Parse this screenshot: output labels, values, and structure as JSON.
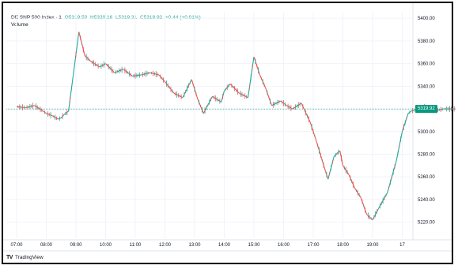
{
  "legend": {
    "symbol": "DE SNP 500 Index · 1",
    "open": "O5319.50",
    "high": "H5320.16",
    "low": "L5319.31",
    "close": "C5319.92",
    "change": "+0.44 (+0.01%)",
    "volume_label": "Volume"
  },
  "price_badge": "5319.92",
  "brand": {
    "logo": "TV",
    "name": "TradingView"
  },
  "colors": {
    "up": "#26a69a",
    "down": "#ef5350",
    "accent": "#089981",
    "grid": "#f0f3fa"
  },
  "chart_data": {
    "type": "line",
    "title": "",
    "xlabel": "",
    "ylabel": "",
    "x_ticks": [
      "07:00",
      "08:00",
      "09:00",
      "10:00",
      "11:00",
      "12:00",
      "13:00",
      "14:00",
      "15:00",
      "16:00",
      "17:00",
      "18:00",
      "19:00",
      "17"
    ],
    "y_ticks": [
      "5400.00",
      "5380.00",
      "5360.00",
      "5340.00",
      "5320.00",
      "5300.00",
      "5280.00",
      "5260.00",
      "5240.00",
      "5220.00"
    ],
    "ylim": [
      5210,
      5405
    ],
    "last_price": 5319.92,
    "series": [
      {
        "x": [
          0,
          0.3,
          0.6,
          0.9,
          1.0,
          1.2,
          1.4,
          1.5,
          1.6,
          1.75,
          1.9,
          2.1,
          2.3,
          2.5,
          2.8,
          3.0,
          3.3,
          3.6,
          3.9,
          4.2,
          4.5,
          4.8,
          5.0,
          5.3,
          5.6,
          5.9,
          6.1,
          6.3,
          6.6,
          6.9,
          7.0,
          7.2,
          7.5,
          7.8,
          8.0,
          8.2,
          8.4,
          8.6,
          8.9,
          9.1,
          9.3,
          9.6,
          9.9,
          10.1,
          10.4,
          10.5,
          10.7,
          10.9,
          11.0,
          11.2,
          11.4,
          11.6,
          11.8,
          12.0,
          12.2,
          12.5,
          12.8,
          13.0,
          13.2,
          13.3,
          13.5,
          13.65,
          13.7,
          13.8,
          14.0,
          14.4,
          14.8
        ],
        "y": [
          5322,
          5321,
          5323,
          5318,
          5316,
          5314,
          5311,
          5312,
          5315,
          5318,
          5348,
          5388,
          5367,
          5362,
          5357,
          5360,
          5352,
          5355,
          5349,
          5350,
          5352,
          5350,
          5344,
          5334,
          5330,
          5346,
          5329,
          5316,
          5331,
          5326,
          5336,
          5342,
          5334,
          5330,
          5366,
          5350,
          5338,
          5323,
          5327,
          5323,
          5320,
          5325,
          5308,
          5292,
          5266,
          5258,
          5278,
          5283,
          5270,
          5262,
          5250,
          5242,
          5227,
          5222,
          5232,
          5246,
          5274,
          5300,
          5316,
          5318,
          5320,
          5319,
          5322,
          5321,
          5318,
          5320,
          5320
        ]
      }
    ]
  }
}
